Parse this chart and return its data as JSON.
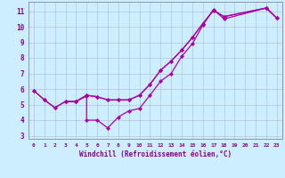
{
  "xlabel": "Windchill (Refroidissement éolien,°C)",
  "bg_color": "#cceeff",
  "line_color": "#aa00aa",
  "grid_color": "#aabbcc",
  "xlim": [
    -0.5,
    23.5
  ],
  "ylim": [
    2.8,
    11.6
  ],
  "yticks": [
    3,
    4,
    5,
    6,
    7,
    8,
    9,
    10,
    11
  ],
  "xticks": [
    0,
    1,
    2,
    3,
    4,
    5,
    6,
    7,
    8,
    9,
    10,
    11,
    12,
    13,
    14,
    15,
    16,
    17,
    18,
    19,
    20,
    21,
    22,
    23
  ],
  "line1_x": [
    0,
    1,
    2,
    3,
    4,
    5,
    5,
    6,
    7,
    8,
    9,
    10,
    11,
    12,
    13,
    14,
    15,
    16,
    17,
    18,
    22,
    23
  ],
  "line1_y": [
    5.9,
    5.3,
    4.8,
    5.2,
    5.2,
    5.55,
    4.0,
    4.0,
    3.5,
    4.2,
    4.6,
    4.75,
    5.6,
    6.5,
    7.0,
    8.1,
    8.9,
    10.1,
    11.1,
    10.5,
    11.2,
    10.55
  ],
  "line2_x": [
    0,
    1,
    2,
    3,
    4,
    5,
    6,
    7,
    8,
    9,
    10,
    11,
    12,
    13,
    14,
    15,
    16,
    17,
    18,
    22,
    23
  ],
  "line2_y": [
    5.9,
    5.3,
    4.8,
    5.2,
    5.2,
    5.6,
    5.5,
    5.3,
    5.3,
    5.3,
    5.6,
    6.3,
    7.2,
    7.8,
    8.5,
    9.3,
    10.2,
    11.05,
    10.65,
    11.2,
    10.55
  ],
  "line3_x": [
    3,
    4,
    5,
    6,
    7,
    8,
    9,
    10,
    11,
    12,
    13,
    14,
    15,
    16,
    17,
    18,
    22,
    23
  ],
  "line3_y": [
    5.2,
    5.2,
    5.6,
    5.5,
    5.3,
    5.3,
    5.3,
    5.6,
    6.3,
    7.2,
    7.8,
    8.5,
    9.3,
    10.2,
    11.05,
    10.65,
    11.2,
    10.55
  ]
}
